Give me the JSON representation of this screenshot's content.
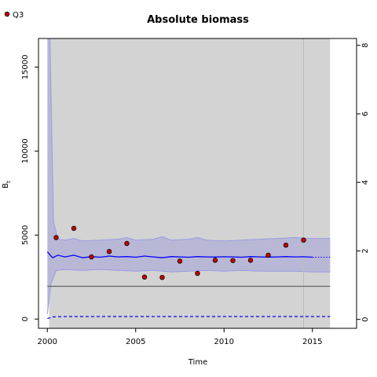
{
  "chart_data": {
    "type": "line",
    "title": "Absolute biomass",
    "xlabel": "Time",
    "ylabel": "B",
    "ylabel_subscript": "t",
    "x_range": [
      1999.5,
      2017.5
    ],
    "y_range": [
      -550,
      16700
    ],
    "y2_range": [
      -0.26,
      8.2
    ],
    "x_ticks": [
      2000,
      2005,
      2010,
      2015
    ],
    "y_ticks": [
      0,
      5000,
      10000,
      15000
    ],
    "y2_ticks": [
      0,
      2,
      4,
      6,
      8
    ],
    "x_tick_labels": [
      "2000",
      "2005",
      "2010",
      "2015"
    ],
    "y_tick_labels": [
      "0",
      "5000",
      "10000",
      "15000"
    ],
    "y2_tick_labels": [
      "0",
      "2",
      "4",
      "6",
      "8"
    ],
    "legend": {
      "placement": "top-left",
      "entries": [
        "Q3"
      ]
    },
    "shaded_region": [
      2000.1,
      2016
    ],
    "vline_x": 14.5,
    "vline_year": 2014.5,
    "hline_value": 1950,
    "colors": {
      "shade": "#d3d3d3",
      "band": "#b8b8d6",
      "band_edge": "#9a9ae6",
      "median": "#0000ff",
      "points": "#cc0000",
      "hline": "#666666",
      "vline": "#bbbbbb"
    },
    "series": [
      {
        "name": "Q3",
        "kind": "observations",
        "x": [
          2000.5,
          2001.5,
          2002.5,
          2003.5,
          2004.5,
          2005.5,
          2006.5,
          2007.5,
          2008.5,
          2009.5,
          2010.5,
          2011.5,
          2012.5,
          2013.5,
          2014.5
        ],
        "y": [
          4850,
          5400,
          3700,
          4020,
          4500,
          2500,
          2480,
          3450,
          2720,
          3500,
          3480,
          3500,
          3800,
          4400,
          4700
        ]
      },
      {
        "kind": "median",
        "x": [
          2000,
          2000.3,
          2000.6,
          2001,
          2001.5,
          2002,
          2002.5,
          2003,
          2003.5,
          2004,
          2004.5,
          2005,
          2005.5,
          2006,
          2006.5,
          2007,
          2007.5,
          2008,
          2008.5,
          2009,
          2009.5,
          2010,
          2010.5,
          2011,
          2011.5,
          2012,
          2012.5,
          2013,
          2013.5,
          2014,
          2014.5,
          2015
        ],
        "y": [
          4000,
          3650,
          3800,
          3700,
          3800,
          3650,
          3720,
          3680,
          3750,
          3700,
          3720,
          3680,
          3750,
          3700,
          3650,
          3720,
          3700,
          3680,
          3720,
          3700,
          3690,
          3710,
          3700,
          3680,
          3720,
          3700,
          3690,
          3700,
          3720,
          3700,
          3710,
          3680
        ]
      },
      {
        "kind": "median-projection",
        "x": [
          2015,
          2016
        ],
        "y": [
          3680,
          3680
        ]
      },
      {
        "kind": "upper-band",
        "x": [
          2000,
          2000.15,
          2000.35,
          2000.6,
          2001,
          2001.5,
          2002,
          2003,
          2004,
          2004.5,
          2005,
          2006,
          2006.5,
          2007,
          2008,
          2008.5,
          2009,
          2010,
          2011,
          2012,
          2013,
          2014,
          2015,
          2016
        ],
        "y": [
          16700,
          16700,
          5800,
          4750,
          4700,
          4800,
          4650,
          4700,
          4750,
          4850,
          4700,
          4750,
          4900,
          4700,
          4750,
          4850,
          4700,
          4650,
          4700,
          4750,
          4800,
          4850,
          4800,
          4800
        ]
      },
      {
        "kind": "lower-band",
        "x": [
          2000,
          2000.2,
          2000.5,
          2001,
          2002,
          2003,
          2004,
          2005,
          2006,
          2007,
          2008,
          2009,
          2010,
          2011,
          2012,
          2013,
          2014,
          2015,
          2016
        ],
        "y": [
          300,
          2100,
          2900,
          2950,
          2900,
          2950,
          2900,
          2850,
          2900,
          2800,
          2850,
          2900,
          2850,
          2900,
          2850,
          2850,
          2850,
          2800,
          2800
        ]
      },
      {
        "kind": "lower-dashed",
        "x": [
          2000,
          2000.3,
          2001,
          2005,
          2010,
          2015,
          2016
        ],
        "y": [
          30,
          130,
          150,
          150,
          150,
          150,
          150
        ]
      }
    ]
  }
}
